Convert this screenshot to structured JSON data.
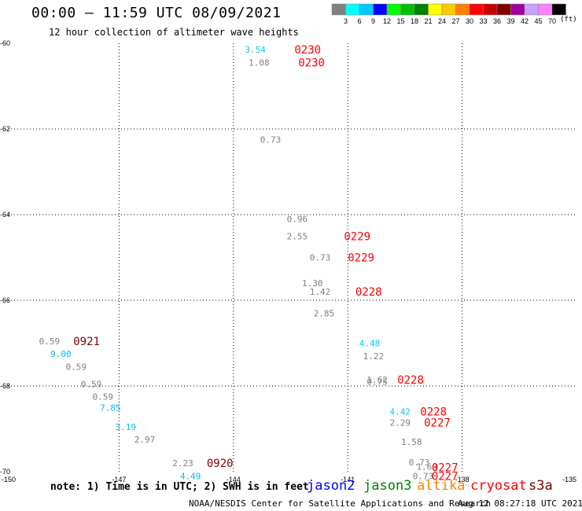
{
  "title": "00:00 – 11:59 UTC 08/09/2021",
  "subtitle": "12 hour collection of altimeter wave heights",
  "note": "note: 1) Time is in UTC; 2) SWH is in feet",
  "credit": "NOAA/NESDIS Center for Satellite Applications and Research",
  "timestamp": "Aug 12 08:27:18 UTC 2021",
  "colorbar": {
    "unit_label": "(ft)",
    "ticks": [
      "3",
      "6",
      "9",
      "12",
      "15",
      "18",
      "21",
      "24",
      "27",
      "30",
      "33",
      "36",
      "39",
      "42",
      "45",
      "70"
    ],
    "colors": [
      "#808080",
      "#00ffff",
      "#00c8ff",
      "#0000ff",
      "#00ff00",
      "#00c000",
      "#008000",
      "#ffff00",
      "#ffc800",
      "#ff8000",
      "#ff0000",
      "#c80000",
      "#800000",
      "#a000a0",
      "#c8a0ff",
      "#ff80ff",
      "#000000"
    ]
  },
  "satellites": [
    {
      "name": "jason2",
      "color": "#0000ff"
    },
    {
      "name": "jason3",
      "color": "#008000"
    },
    {
      "name": "altika",
      "color": "#ff8000"
    },
    {
      "name": "cryosat",
      "color": "#ff0000"
    },
    {
      "name": "s3a",
      "color": "#800000"
    }
  ],
  "chart_data": {
    "type": "scatter",
    "title": "00:00 – 11:59 UTC 08/09/2021",
    "subtitle": "12 hour collection of altimeter wave heights",
    "xlim": [
      -150,
      -135
    ],
    "ylim": [
      -70,
      -60
    ],
    "x_ticks": [
      "-150",
      "-147",
      "-144",
      "-141",
      "-138",
      "-135"
    ],
    "y_ticks": [
      "-60",
      "-62",
      "-64",
      "-66",
      "-68",
      "-70"
    ],
    "grid": true,
    "swh_points": [
      {
        "lon": -143.7,
        "lat": -60.15,
        "value": "3.54",
        "color": "#00ccee"
      },
      {
        "lon": -143.6,
        "lat": -60.45,
        "value": "1.08",
        "color": "#808080"
      },
      {
        "lon": -143.3,
        "lat": -62.25,
        "value": "0.73",
        "color": "#808080"
      },
      {
        "lon": -142.6,
        "lat": -64.1,
        "value": "0.96",
        "color": "#808080"
      },
      {
        "lon": -142.6,
        "lat": -64.5,
        "value": "2.55",
        "color": "#808080"
      },
      {
        "lon": -142.0,
        "lat": -65.0,
        "value": "0.73",
        "color": "#808080"
      },
      {
        "lon": -142.2,
        "lat": -65.6,
        "value": "1.30",
        "color": "#808080"
      },
      {
        "lon": -142.0,
        "lat": -65.8,
        "value": "1.42",
        "color": "#808080"
      },
      {
        "lon": -141.9,
        "lat": -66.3,
        "value": "2.85",
        "color": "#808080"
      },
      {
        "lon": -140.7,
        "lat": -67.0,
        "value": "4.48",
        "color": "#00ccee"
      },
      {
        "lon": -140.6,
        "lat": -67.3,
        "value": "1.22",
        "color": "#808080"
      },
      {
        "lon": -140.5,
        "lat": -67.85,
        "value": "1.62",
        "color": "#808080"
      },
      {
        "lon": -140.5,
        "lat": -67.9,
        "value": "0.75",
        "color": "#808080"
      },
      {
        "lon": -139.9,
        "lat": -68.6,
        "value": "4.42",
        "color": "#00ccee"
      },
      {
        "lon": -139.9,
        "lat": -68.85,
        "value": "2.29",
        "color": "#808080"
      },
      {
        "lon": -139.6,
        "lat": -69.3,
        "value": "1.58",
        "color": "#808080"
      },
      {
        "lon": -139.4,
        "lat": -69.78,
        "value": "0.73",
        "color": "#808080"
      },
      {
        "lon": -139.2,
        "lat": -69.88,
        "value": "1.60",
        "color": "#808080"
      },
      {
        "lon": -139.3,
        "lat": -70.1,
        "value": "0.73",
        "color": "#808080"
      },
      {
        "lon": -149.1,
        "lat": -66.95,
        "value": "0.59",
        "color": "#808080"
      },
      {
        "lon": -148.8,
        "lat": -67.25,
        "value": "9.00",
        "color": "#00bbee"
      },
      {
        "lon": -148.4,
        "lat": -67.55,
        "value": "0.59",
        "color": "#808080"
      },
      {
        "lon": -148.0,
        "lat": -67.95,
        "value": "0.59",
        "color": "#808080"
      },
      {
        "lon": -147.7,
        "lat": -68.25,
        "value": "0.59",
        "color": "#808080"
      },
      {
        "lon": -147.5,
        "lat": -68.5,
        "value": "7.85",
        "color": "#00bbee"
      },
      {
        "lon": -147.1,
        "lat": -68.95,
        "value": "3.19",
        "color": "#00bbee"
      },
      {
        "lon": -146.6,
        "lat": -69.25,
        "value": "2.97",
        "color": "#808080"
      },
      {
        "lon": -145.6,
        "lat": -69.8,
        "value": "2.23",
        "color": "#808080"
      },
      {
        "lon": -145.4,
        "lat": -70.1,
        "value": "4.49",
        "color": "#00bbee"
      }
    ],
    "time_labels": [
      {
        "lon": -142.4,
        "lat": -60.15,
        "value": "0230",
        "color": "#ff0000"
      },
      {
        "lon": -142.3,
        "lat": -60.45,
        "value": "0230",
        "color": "#ff0000"
      },
      {
        "lon": -141.1,
        "lat": -64.5,
        "value": "0229",
        "color": "#ff0000"
      },
      {
        "lon": -141.0,
        "lat": -65.0,
        "value": "0229",
        "color": "#ff0000"
      },
      {
        "lon": -140.8,
        "lat": -65.8,
        "value": "0228",
        "color": "#ff0000"
      },
      {
        "lon": -139.7,
        "lat": -67.85,
        "value": "0228",
        "color": "#ff0000"
      },
      {
        "lon": -139.1,
        "lat": -68.6,
        "value": "0228",
        "color": "#ff0000"
      },
      {
        "lon": -139.0,
        "lat": -68.85,
        "value": "0227",
        "color": "#ff0000"
      },
      {
        "lon": -138.8,
        "lat": -69.9,
        "value": "0227",
        "color": "#ff0000"
      },
      {
        "lon": -138.8,
        "lat": -70.1,
        "value": "0227",
        "color": "#ff0000"
      },
      {
        "lon": -148.2,
        "lat": -66.95,
        "value": "0921",
        "color": "#800000"
      },
      {
        "lon": -144.7,
        "lat": -69.8,
        "value": "0920",
        "color": "#800000"
      }
    ]
  }
}
